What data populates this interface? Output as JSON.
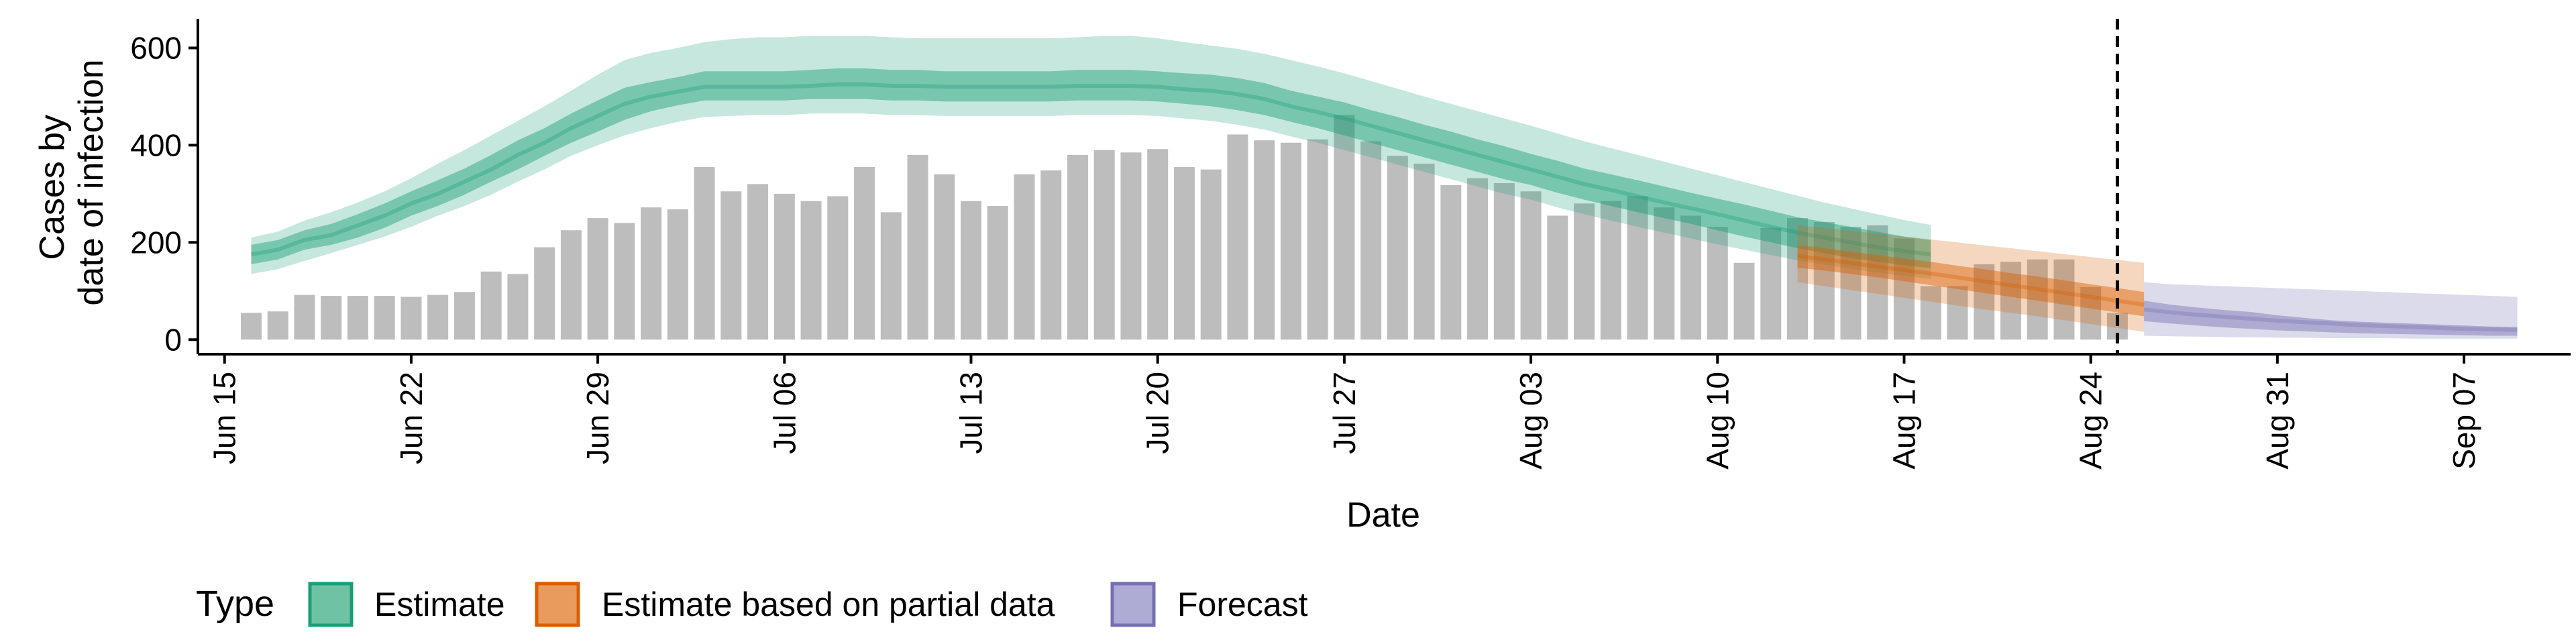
{
  "chart_data": {
    "type": "bar",
    "xlabel": "Date",
    "ylabel_line1": "Cases by",
    "ylabel_line2": "date of infection",
    "ylim": [
      -30,
      660
    ],
    "yticks": [
      0,
      200,
      400,
      600
    ],
    "xlim_days": [
      "2020-06-14",
      "2020-09-11"
    ],
    "xticks": [
      {
        "date": "2020-06-15",
        "label": "Jun 15"
      },
      {
        "date": "2020-06-22",
        "label": "Jun 22"
      },
      {
        "date": "2020-06-29",
        "label": "Jun 29"
      },
      {
        "date": "2020-07-06",
        "label": "Jul 06"
      },
      {
        "date": "2020-07-13",
        "label": "Jul 13"
      },
      {
        "date": "2020-07-20",
        "label": "Jul 20"
      },
      {
        "date": "2020-07-27",
        "label": "Jul 27"
      },
      {
        "date": "2020-08-03",
        "label": "Aug 03"
      },
      {
        "date": "2020-08-10",
        "label": "Aug 10"
      },
      {
        "date": "2020-08-17",
        "label": "Aug 17"
      },
      {
        "date": "2020-08-24",
        "label": "Aug 24"
      },
      {
        "date": "2020-08-31",
        "label": "Aug 31"
      },
      {
        "date": "2020-09-07",
        "label": "Sep 07"
      }
    ],
    "bars_start_date": "2020-06-16",
    "bars": [
      55,
      58,
      92,
      90,
      90,
      90,
      88,
      92,
      98,
      140,
      135,
      190,
      225,
      250,
      240,
      272,
      268,
      355,
      305,
      320,
      300,
      285,
      295,
      355,
      262,
      380,
      340,
      285,
      275,
      340,
      348,
      380,
      390,
      385,
      392,
      355,
      350,
      422,
      410,
      405,
      412,
      462,
      408,
      378,
      362,
      318,
      332,
      322,
      305,
      255,
      280,
      285,
      295,
      272,
      255,
      232,
      158,
      230,
      250,
      242,
      232,
      235,
      208,
      110,
      110,
      155,
      160,
      165,
      165,
      108,
      55
    ],
    "series": [
      {
        "name": "Estimate",
        "color": "#1b9e77",
        "start_date": "2020-06-16",
        "median": [
          175,
          185,
          205,
          215,
          235,
          255,
          280,
          300,
          325,
          350,
          380,
          405,
          435,
          460,
          485,
          500,
          510,
          520,
          520,
          520,
          520,
          522,
          525,
          525,
          522,
          522,
          520,
          520,
          520,
          520,
          520,
          522,
          522,
          522,
          520,
          515,
          512,
          505,
          495,
          480,
          468,
          455,
          440,
          425,
          410,
          395,
          380,
          365,
          350,
          335,
          320,
          308,
          295,
          282,
          270,
          258,
          245,
          232,
          220,
          210,
          200,
          190,
          182,
          175
        ],
        "inner_low": [
          155,
          165,
          185,
          195,
          210,
          230,
          255,
          275,
          298,
          325,
          350,
          378,
          405,
          428,
          452,
          470,
          482,
          492,
          492,
          492,
          492,
          495,
          495,
          495,
          492,
          492,
          490,
          490,
          490,
          490,
          490,
          492,
          492,
          492,
          490,
          485,
          480,
          472,
          462,
          448,
          435,
          420,
          405,
          390,
          375,
          360,
          345,
          330,
          318,
          302,
          288,
          275,
          262,
          250,
          238,
          225,
          212,
          200,
          188,
          178,
          168,
          160,
          153,
          147
        ],
        "inner_high": [
          195,
          205,
          225,
          238,
          258,
          280,
          305,
          328,
          352,
          380,
          410,
          435,
          465,
          492,
          518,
          530,
          540,
          552,
          552,
          552,
          552,
          555,
          558,
          558,
          555,
          555,
          552,
          552,
          552,
          552,
          552,
          555,
          555,
          555,
          552,
          548,
          545,
          538,
          528,
          512,
          500,
          488,
          472,
          458,
          442,
          428,
          412,
          398,
          382,
          368,
          352,
          340,
          328,
          315,
          302,
          290,
          278,
          265,
          252,
          242,
          232,
          222,
          212,
          205
        ],
        "outer_low": [
          135,
          145,
          162,
          178,
          195,
          212,
          232,
          255,
          275,
          298,
          325,
          350,
          378,
          400,
          420,
          435,
          448,
          458,
          460,
          462,
          462,
          465,
          465,
          465,
          462,
          462,
          460,
          460,
          460,
          460,
          460,
          462,
          462,
          462,
          460,
          455,
          450,
          442,
          432,
          418,
          405,
          390,
          375,
          360,
          345,
          330,
          315,
          300,
          288,
          272,
          258,
          245,
          232,
          220,
          208,
          196,
          185,
          174,
          163,
          154,
          146,
          138,
          131,
          125
        ],
        "outer_high": [
          210,
          222,
          245,
          262,
          282,
          305,
          332,
          362,
          390,
          420,
          450,
          480,
          512,
          545,
          575,
          590,
          600,
          612,
          618,
          622,
          622,
          625,
          625,
          625,
          622,
          620,
          620,
          620,
          620,
          620,
          620,
          622,
          625,
          625,
          620,
          612,
          605,
          598,
          588,
          575,
          562,
          548,
          532,
          516,
          500,
          485,
          470,
          455,
          440,
          424,
          408,
          394,
          380,
          366,
          352,
          338,
          324,
          310,
          296,
          282,
          270,
          258,
          246,
          236
        ]
      },
      {
        "name": "Estimate based on partial data",
        "color": "#d95f02",
        "start_date": "2020-08-13",
        "median": [
          172,
          165,
          158,
          150,
          143,
          136,
          128,
          120,
          112,
          104,
          96,
          88,
          80,
          72
        ],
        "inner_low": [
          148,
          142,
          135,
          128,
          120,
          112,
          104,
          96,
          88,
          80,
          72,
          64,
          56,
          48
        ],
        "inner_high": [
          195,
          188,
          181,
          174,
          167,
          160,
          152,
          145,
          137,
          130,
          122,
          114,
          106,
          98
        ],
        "outer_low": [
          118,
          110,
          102,
          94,
          86,
          78,
          70,
          62,
          55,
          48,
          40,
          32,
          24,
          16
        ],
        "outer_high": [
          235,
          230,
          224,
          218,
          212,
          206,
          200,
          194,
          188,
          182,
          176,
          170,
          164,
          158
        ]
      },
      {
        "name": "Forecast",
        "color": "#7570b3",
        "start_date": "2020-08-26",
        "median": [
          62,
          56,
          51,
          47,
          43,
          39,
          36,
          33,
          30,
          28,
          26,
          24,
          22,
          21,
          20
        ],
        "inner_low": [
          38,
          33,
          29,
          25,
          22,
          19,
          17,
          15,
          13,
          12,
          11,
          10,
          9,
          8,
          8
        ],
        "inner_high": [
          80,
          72,
          66,
          61,
          57,
          50,
          45,
          40,
          37,
          35,
          33,
          31,
          29,
          27,
          26
        ],
        "outer_low": [
          8,
          7,
          6,
          5,
          5,
          4,
          4,
          3,
          3,
          3,
          2,
          2,
          2,
          2,
          2
        ],
        "outer_high": [
          118,
          114,
          112,
          110,
          108,
          106,
          104,
          102,
          100,
          98,
          96,
          94,
          92,
          90,
          88
        ]
      }
    ],
    "vline_date": "2020-08-25",
    "legend": {
      "title": "Type",
      "position": "bottom-left",
      "items": [
        {
          "label": "Estimate",
          "color": "#1b9e77"
        },
        {
          "label": "Estimate based on partial data",
          "color": "#d95f02"
        },
        {
          "label": "Forecast",
          "color": "#7570b3"
        }
      ]
    },
    "bar_color": "#bdbdbd",
    "grid": false
  }
}
